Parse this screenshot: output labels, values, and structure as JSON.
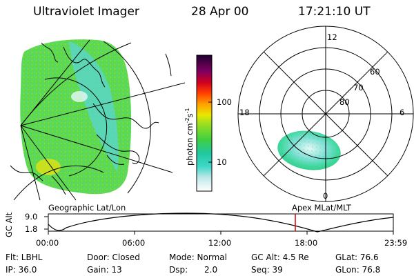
{
  "header": {
    "instrument": "Ultraviolet Imager",
    "date": "28 Apr 00",
    "time": "17:21:10 UT"
  },
  "colorbar": {
    "unit_label": "photon cm",
    "unit_exp1": "-2",
    "unit_mid": "s",
    "unit_exp2": "-1",
    "tick_100": "100",
    "tick_10": "10"
  },
  "polar_plot": {
    "mlt_12": "12",
    "mlt_18": "18",
    "mlt_6": "6",
    "mlt_0": "0",
    "lat_60": "60",
    "lat_70": "70",
    "lat_80": "80"
  },
  "labels": {
    "geo_caption": "Geographic Lat/Lon",
    "apex_caption": "Apex MLat/MLT"
  },
  "altitude_plot": {
    "ylabel": "GC Alt",
    "ytick_top": "9.0",
    "ytick_bottom": "1.8",
    "xticks": [
      "00:00",
      "06:00",
      "12:00",
      "18:00",
      "23:59"
    ],
    "current_time_marker": "17:21",
    "marker_color": "#d00000"
  },
  "status": {
    "flt": "Flt: LBHL",
    "ip": "IP: 36.0",
    "door": "Door: Closed",
    "gain": "Gain: 13",
    "mode": "Mode: Normal",
    "dsp_label": "Dsp:",
    "dsp_value": "2.0",
    "gcalt": "GC Alt: 4.5 Re",
    "seq": "Seq: 39",
    "glat": "GLat: 76.6",
    "glon": "GLon: 76.8"
  }
}
